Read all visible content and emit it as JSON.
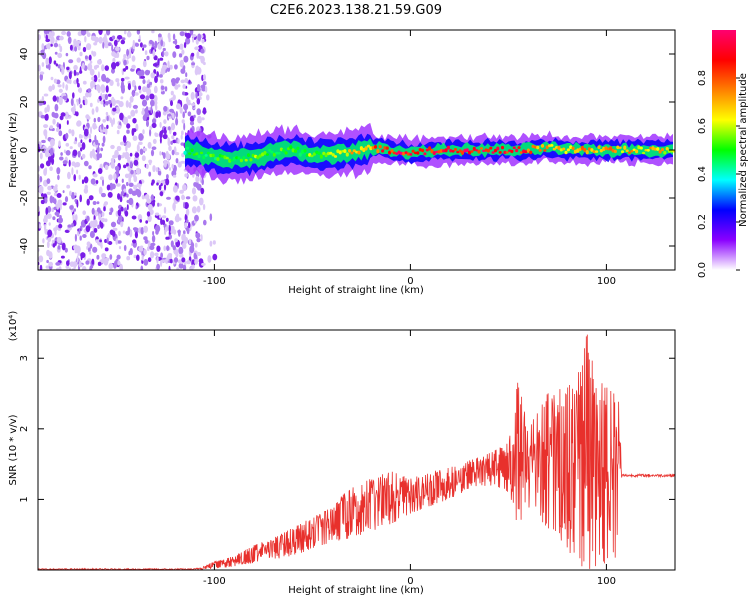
{
  "title": "C2E6.2023.138.21.59.G09",
  "chart_data": [
    {
      "type": "heatmap",
      "xlabel": "Height of straight line (km)",
      "ylabel": "Frequency (Hz)",
      "xlim": [
        -190,
        135
      ],
      "ylim": [
        -50,
        50
      ],
      "xticks": [
        -100,
        0,
        100
      ],
      "yticks": [
        -40,
        -20,
        0,
        20,
        40
      ],
      "colorbar": {
        "label": "Normalized spectral amplitude",
        "range": [
          0,
          1
        ],
        "ticks": [
          0.0,
          0.2,
          0.4,
          0.6,
          0.8
        ],
        "tick_labels": [
          "0.0",
          "0.2",
          "0.4",
          "0.6",
          "0.8"
        ],
        "colors": [
          "#ffffff",
          "#8a00ff",
          "#0000ff",
          "#00ffff",
          "#00ff00",
          "#ffff00",
          "#ff8000",
          "#ff0000",
          "#ff0070"
        ]
      },
      "regions": {
        "noise": {
          "x": [
            -190,
            -105
          ],
          "freq": [
            -50,
            50
          ],
          "amplitude": 0.1
        },
        "signal_ridge": {
          "x": [
            -115,
            -100,
            -90,
            -80,
            -70,
            -60,
            -50,
            -40,
            -30,
            -20,
            -10,
            0,
            20,
            40,
            60,
            70,
            80,
            90,
            100,
            110,
            135
          ],
          "center_freq": [
            0,
            -3,
            -4,
            -3,
            -1,
            0,
            -2,
            -2,
            -1,
            1,
            0,
            -1,
            0,
            0,
            0,
            1,
            0,
            0,
            0,
            0,
            0
          ],
          "amplitude": [
            0.45,
            0.5,
            0.5,
            0.55,
            0.5,
            0.5,
            0.55,
            0.6,
            0.65,
            0.75,
            0.85,
            0.9,
            0.9,
            0.9,
            0.85,
            0.7,
            0.7,
            0.75,
            0.75,
            0.7,
            0.65
          ]
        }
      }
    },
    {
      "type": "line",
      "xlabel": "Height of straight line (km)",
      "ylabel": "SNR (10 * v/v)",
      "y_multiplier": "(x10⁴)",
      "xlim": [
        -190,
        135
      ],
      "ylim": [
        0,
        3.4
      ],
      "xticks": [
        -100,
        0,
        100
      ],
      "yticks": [
        1,
        2,
        3
      ],
      "color": "#e8302c",
      "envelope": {
        "x": [
          -190,
          -110,
          -100,
          -90,
          -80,
          -70,
          -60,
          -50,
          -40,
          -30,
          -20,
          -10,
          0,
          10,
          20,
          30,
          40,
          50,
          55,
          60,
          70,
          80,
          85,
          90,
          95,
          100,
          106,
          108,
          135
        ],
        "low": [
          0,
          0,
          0.02,
          0.05,
          0.1,
          0.15,
          0.2,
          0.3,
          0.4,
          0.45,
          0.55,
          0.65,
          0.8,
          0.9,
          1.0,
          1.15,
          1.2,
          1.1,
          0.6,
          0.9,
          0.6,
          0.3,
          0.1,
          0.0,
          0.05,
          0.1,
          0.2,
          1.32,
          1.32
        ],
        "high": [
          0.02,
          0.02,
          0.12,
          0.2,
          0.35,
          0.45,
          0.6,
          0.75,
          0.9,
          1.2,
          1.3,
          1.4,
          1.3,
          1.4,
          1.45,
          1.55,
          1.65,
          1.8,
          2.7,
          2.0,
          2.5,
          2.6,
          2.7,
          3.4,
          2.7,
          2.6,
          2.6,
          1.36,
          1.36
        ]
      }
    }
  ]
}
